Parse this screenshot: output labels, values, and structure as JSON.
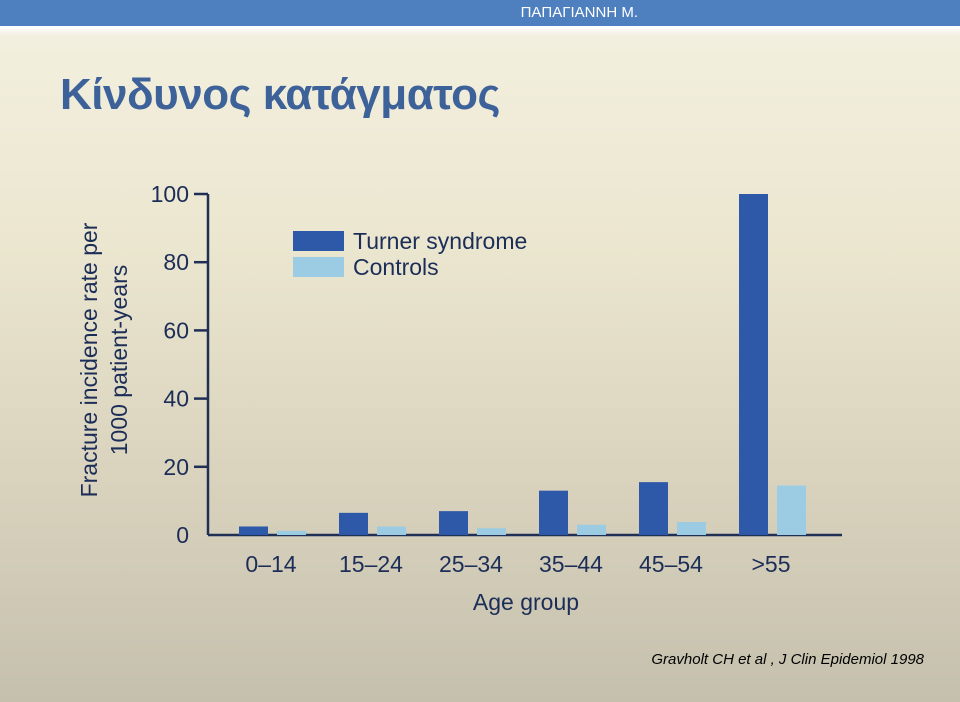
{
  "header": {
    "author": "ΠΑΠΑΓΙΑΝΝΗ Μ."
  },
  "slide": {
    "title": "Κίνδυνος κατάγματος",
    "citation": "Gravholt CH et al , J Clin Epidemiol 1998"
  },
  "colors": {
    "header_bar": "#4e7fbf",
    "title": "#3d6199",
    "turner": "#2e59a9",
    "controls": "#9ccbe4",
    "axis": "#1f2f55"
  },
  "chart_data": {
    "type": "bar",
    "categories": [
      "0–14",
      "15–24",
      "25–34",
      "35–44",
      "45–54",
      ">55"
    ],
    "series": [
      {
        "name": "Turner syndrome",
        "values": [
          2.5,
          6.5,
          7,
          13,
          15.5,
          100
        ]
      },
      {
        "name": "Controls",
        "values": [
          1.2,
          2.5,
          2,
          3,
          3.8,
          14.5
        ]
      }
    ],
    "xlabel": "Age group",
    "ylabel_lines": [
      "Fracture incidence rate per",
      "1000 patient-years"
    ],
    "yticks": [
      0,
      20,
      40,
      60,
      80,
      100
    ],
    "ylim": [
      0,
      100
    ],
    "legend_position": "top-left",
    "grid": false
  }
}
